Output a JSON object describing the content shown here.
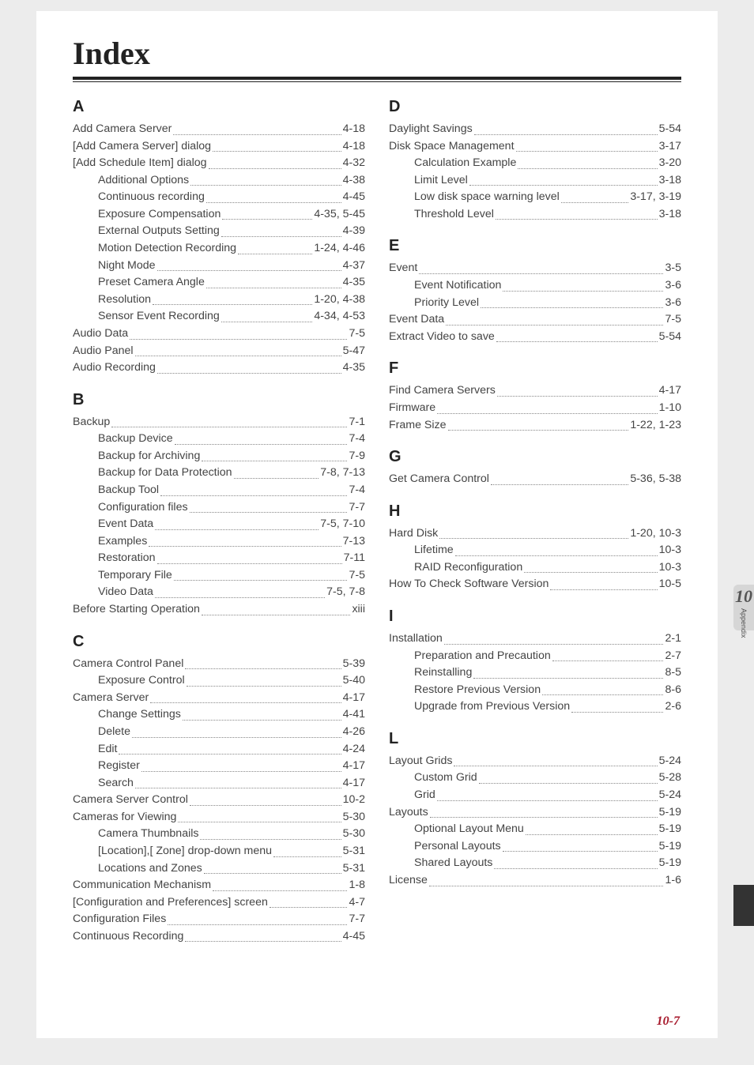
{
  "title": "Index",
  "page_number": "10-7",
  "side_tab": {
    "chapter": "10",
    "label": "Appendix"
  },
  "columns": [
    [
      {
        "type": "letter",
        "text": "A"
      },
      {
        "label": "Add Camera Server",
        "page": "4-18"
      },
      {
        "label": "[Add Camera Server] dialog",
        "page": "4-18"
      },
      {
        "label": "[Add Schedule Item] dialog",
        "page": "4-32"
      },
      {
        "label": "Additional Options",
        "page": "4-38",
        "indent": true
      },
      {
        "label": "Continuous recording",
        "page": "4-45",
        "indent": true
      },
      {
        "label": "Exposure Compensation",
        "page": "4-35, 5-45",
        "indent": true
      },
      {
        "label": "External Outputs Setting",
        "page": "4-39",
        "indent": true
      },
      {
        "label": "Motion Detection Recording",
        "page": "1-24, 4-46",
        "indent": true
      },
      {
        "label": "Night Mode",
        "page": "4-37",
        "indent": true
      },
      {
        "label": "Preset Camera Angle",
        "page": "4-35",
        "indent": true
      },
      {
        "label": "Resolution",
        "page": "1-20, 4-38",
        "indent": true
      },
      {
        "label": "Sensor Event Recording",
        "page": "4-34, 4-53",
        "indent": true
      },
      {
        "label": "Audio Data",
        "page": "7-5"
      },
      {
        "label": "Audio Panel",
        "page": "5-47"
      },
      {
        "label": "Audio Recording",
        "page": "4-35"
      },
      {
        "type": "letter",
        "text": "B"
      },
      {
        "label": "Backup",
        "page": "7-1"
      },
      {
        "label": "Backup Device",
        "page": "7-4",
        "indent": true
      },
      {
        "label": "Backup for Archiving",
        "page": "7-9",
        "indent": true
      },
      {
        "label": "Backup for Data Protection",
        "page": "7-8, 7-13",
        "indent": true
      },
      {
        "label": "Backup Tool",
        "page": "7-4",
        "indent": true
      },
      {
        "label": "Configuration files",
        "page": "7-7",
        "indent": true
      },
      {
        "label": "Event Data",
        "page": "7-5, 7-10",
        "indent": true
      },
      {
        "label": "Examples",
        "page": "7-13",
        "indent": true
      },
      {
        "label": "Restoration",
        "page": "7-11",
        "indent": true
      },
      {
        "label": "Temporary File",
        "page": "7-5",
        "indent": true
      },
      {
        "label": "Video Data",
        "page": "7-5, 7-8",
        "indent": true
      },
      {
        "label": "Before Starting Operation",
        "page": "xiii"
      },
      {
        "type": "letter",
        "text": "C"
      },
      {
        "label": "Camera Control Panel",
        "page": "5-39"
      },
      {
        "label": "Exposure Control",
        "page": "5-40",
        "indent": true
      },
      {
        "label": "Camera Server",
        "page": "4-17"
      },
      {
        "label": "Change Settings",
        "page": "4-41",
        "indent": true
      },
      {
        "label": "Delete",
        "page": "4-26",
        "indent": true
      },
      {
        "label": "Edit",
        "page": "4-24",
        "indent": true
      },
      {
        "label": "Register",
        "page": "4-17",
        "indent": true
      },
      {
        "label": "Search",
        "page": "4-17",
        "indent": true
      },
      {
        "label": "Camera Server Control",
        "page": "10-2"
      },
      {
        "label": "Cameras for Viewing",
        "page": "5-30"
      },
      {
        "label": "Camera Thumbnails",
        "page": "5-30",
        "indent": true
      },
      {
        "label": "[Location],[ Zone] drop-down menu",
        "page": "5-31",
        "indent": true
      },
      {
        "label": "Locations and Zones",
        "page": "5-31",
        "indent": true
      },
      {
        "label": "Communication Mechanism",
        "page": "1-8"
      },
      {
        "label": "[Configuration and Preferences] screen",
        "page": "4-7"
      },
      {
        "label": "Configuration Files",
        "page": "7-7"
      },
      {
        "label": "Continuous Recording",
        "page": "4-45"
      }
    ],
    [
      {
        "type": "letter",
        "text": "D"
      },
      {
        "label": "Daylight Savings",
        "page": "5-54"
      },
      {
        "label": "Disk Space Management",
        "page": "3-17"
      },
      {
        "label": "Calculation Example",
        "page": "3-20",
        "indent": true
      },
      {
        "label": "Limit Level",
        "page": "3-18",
        "indent": true
      },
      {
        "label": "Low disk space warning level",
        "page": "3-17, 3-19",
        "indent": true
      },
      {
        "label": "Threshold Level",
        "page": "3-18",
        "indent": true
      },
      {
        "type": "letter",
        "text": "E"
      },
      {
        "label": "Event",
        "page": "3-5"
      },
      {
        "label": "Event Notification",
        "page": "3-6",
        "indent": true
      },
      {
        "label": "Priority Level",
        "page": "3-6",
        "indent": true
      },
      {
        "label": "Event Data",
        "page": "7-5"
      },
      {
        "label": "Extract Video to save",
        "page": "5-54"
      },
      {
        "type": "letter",
        "text": "F"
      },
      {
        "label": "Find Camera Servers",
        "page": "4-17"
      },
      {
        "label": "Firmware",
        "page": "1-10"
      },
      {
        "label": "Frame Size",
        "page": "1-22, 1-23"
      },
      {
        "type": "letter",
        "text": "G"
      },
      {
        "label": "Get Camera Control",
        "page": "5-36, 5-38"
      },
      {
        "type": "letter",
        "text": "H"
      },
      {
        "label": "Hard Disk",
        "page": "1-20, 10-3"
      },
      {
        "label": "Lifetime",
        "page": "10-3",
        "indent": true
      },
      {
        "label": "RAID Reconfiguration",
        "page": "10-3",
        "indent": true
      },
      {
        "label": "How To Check Software Version",
        "page": "10-5"
      },
      {
        "type": "letter",
        "text": "I"
      },
      {
        "label": "Installation",
        "page": "2-1"
      },
      {
        "label": "Preparation and Precaution",
        "page": "2-7",
        "indent": true
      },
      {
        "label": "Reinstalling",
        "page": "8-5",
        "indent": true
      },
      {
        "label": "Restore Previous Version",
        "page": "8-6",
        "indent": true
      },
      {
        "label": "Upgrade from Previous Version",
        "page": "2-6",
        "indent": true
      },
      {
        "type": "letter",
        "text": "L"
      },
      {
        "label": "Layout Grids",
        "page": "5-24"
      },
      {
        "label": "Custom Grid",
        "page": "5-28",
        "indent": true
      },
      {
        "label": "Grid",
        "page": "5-24",
        "indent": true
      },
      {
        "label": "Layouts",
        "page": "5-19"
      },
      {
        "label": "Optional Layout Menu",
        "page": "5-19",
        "indent": true
      },
      {
        "label": "Personal Layouts",
        "page": "5-19",
        "indent": true
      },
      {
        "label": "Shared Layouts",
        "page": "5-19",
        "indent": true
      },
      {
        "label": "License",
        "page": "1-6"
      }
    ]
  ]
}
